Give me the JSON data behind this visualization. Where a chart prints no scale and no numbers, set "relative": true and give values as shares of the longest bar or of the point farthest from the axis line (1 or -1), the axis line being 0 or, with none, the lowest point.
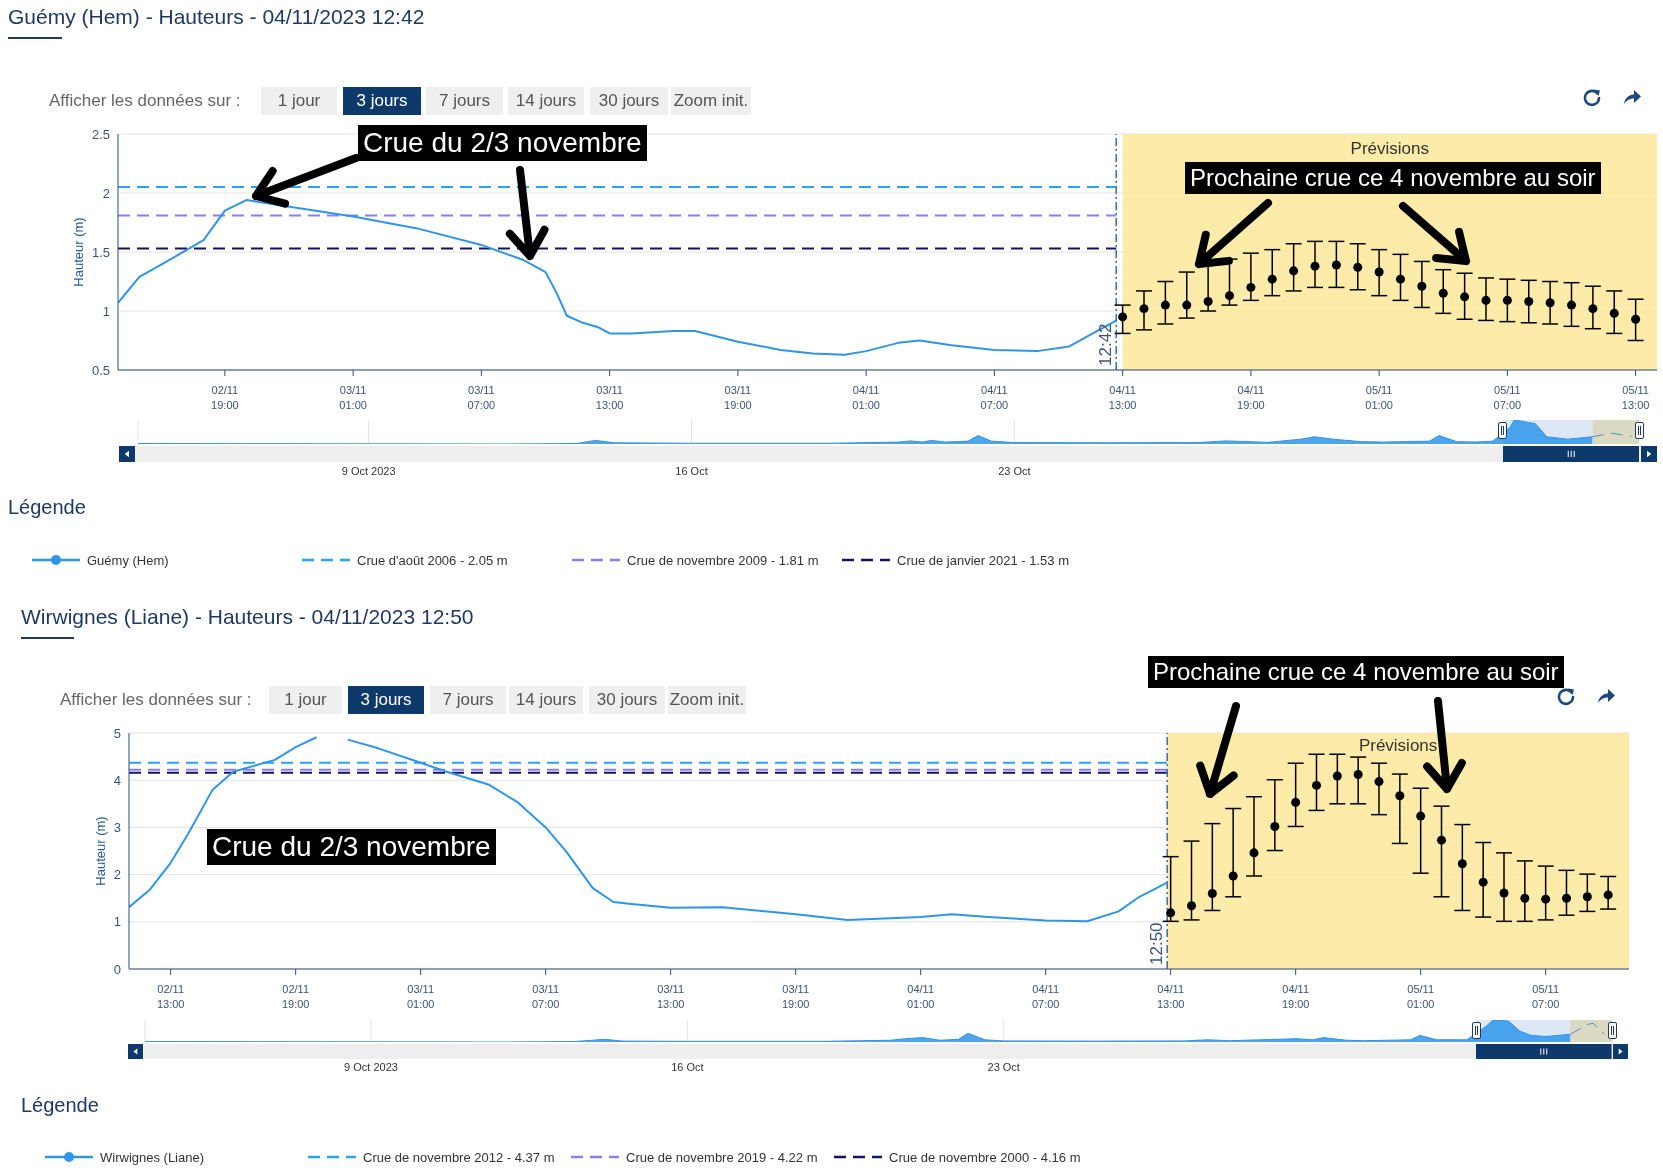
{
  "chart_data": [
    {
      "type": "line",
      "title": "Guémy (Hem) - Hauteurs - 04/11/2023 12:42",
      "ylabel": "Hauteur (m)",
      "legend_title": "Légende",
      "annotations": [
        "Afficher les données sur :",
        "1 jour",
        "3 jours",
        "7 jours",
        "14 jours",
        "30 jours",
        "Zoom init.",
        "Crue du 2/3 novembre",
        "Prochaine crue ce 4 novembre au soir"
      ],
      "series": [
        {
          "name": "Guémy (Hem)",
          "color": "#2f95ea",
          "x": [
            "2023-11-02T14:00",
            "2023-11-02T15:00",
            "2023-11-02T16:00",
            "2023-11-02T18:00",
            "2023-11-02T19:00",
            "2023-11-02T20:00",
            "2023-11-03T01:00",
            "2023-11-03T04:00",
            "2023-11-03T07:00",
            "2023-11-03T09:00",
            "2023-11-03T10:00",
            "2023-11-03T10:30",
            "2023-11-03T11:00",
            "2023-11-03T11:45",
            "2023-11-03T12:30",
            "2023-11-03T13:00",
            "2023-11-03T14:00",
            "2023-11-03T16:00",
            "2023-11-03T17:00",
            "2023-11-03T19:00",
            "2023-11-03T21:00",
            "2023-11-03T22:30",
            "2023-11-04T00:00",
            "2023-11-04T01:00",
            "2023-11-04T02:30",
            "2023-11-04T03:30",
            "2023-11-04T05:00",
            "2023-11-04T07:00",
            "2023-11-04T09:00",
            "2023-11-04T10:30",
            "2023-11-04T11:30",
            "2023-11-04T12:30",
            "2023-11-04T12:42"
          ],
          "values": [
            1.07,
            1.29,
            1.39,
            1.6,
            1.85,
            1.94,
            1.8,
            1.7,
            1.56,
            1.43,
            1.33,
            1.16,
            0.96,
            0.9,
            0.86,
            0.81,
            0.81,
            0.83,
            0.83,
            0.74,
            0.67,
            0.64,
            0.63,
            0.66,
            0.73,
            0.75,
            0.71,
            0.67,
            0.66,
            0.7,
            0.8,
            0.9,
            0.92
          ]
        },
        {
          "type": "scatter",
          "color": "#000000",
          "marker": "circle",
          "x": [
            "2023-11-04T13:00",
            "2023-11-04T14:00",
            "2023-11-04T15:00",
            "2023-11-04T16:00",
            "2023-11-04T17:00",
            "2023-11-04T18:00",
            "2023-11-04T19:00",
            "2023-11-04T20:00",
            "2023-11-04T21:00",
            "2023-11-04T22:00",
            "2023-11-04T23:00",
            "2023-11-05T00:00",
            "2023-11-05T01:00",
            "2023-11-05T02:00",
            "2023-11-05T03:00",
            "2023-11-05T04:00",
            "2023-11-05T05:00",
            "2023-11-05T06:00",
            "2023-11-05T07:00",
            "2023-11-05T08:00",
            "2023-11-05T09:00",
            "2023-11-05T10:00",
            "2023-11-05T11:00",
            "2023-11-05T12:00",
            "2023-11-05T13:00"
          ],
          "values": [
            0.95,
            1.02,
            1.05,
            1.05,
            1.08,
            1.13,
            1.2,
            1.27,
            1.34,
            1.38,
            1.39,
            1.37,
            1.33,
            1.27,
            1.21,
            1.15,
            1.12,
            1.09,
            1.09,
            1.08,
            1.07,
            1.05,
            1.02,
            0.98,
            0.93
          ],
          "errors": [
            [
              0.81,
              1.05
            ],
            [
              0.84,
              1.17
            ],
            [
              0.89,
              1.25
            ],
            [
              0.94,
              1.33
            ],
            [
              1.0,
              1.42
            ],
            [
              1.05,
              1.44
            ],
            [
              1.09,
              1.49
            ],
            [
              1.13,
              1.52
            ],
            [
              1.17,
              1.57
            ],
            [
              1.2,
              1.59
            ],
            [
              1.2,
              1.59
            ],
            [
              1.18,
              1.57
            ],
            [
              1.13,
              1.52
            ],
            [
              1.09,
              1.48
            ],
            [
              1.03,
              1.42
            ],
            [
              0.98,
              1.35
            ],
            [
              0.93,
              1.32
            ],
            [
              0.92,
              1.28
            ],
            [
              0.91,
              1.27
            ],
            [
              0.9,
              1.26
            ],
            [
              0.89,
              1.25
            ],
            [
              0.87,
              1.24
            ],
            [
              0.85,
              1.21
            ],
            [
              0.81,
              1.17
            ],
            [
              0.75,
              1.1
            ]
          ]
        }
      ],
      "xlim": [
        "2023-11-02T14:00",
        "2023-11-05T14:00"
      ],
      "xticks": [
        {
          "value": "2023-11-02T19:00",
          "label": "02/11\n19:00"
        },
        {
          "value": "2023-11-03T01:00",
          "label": "03/11\n01:00"
        },
        {
          "value": "2023-11-03T07:00",
          "label": "03/11\n07:00"
        },
        {
          "value": "2023-11-03T13:00",
          "label": "03/11\n13:00"
        },
        {
          "value": "2023-11-03T19:00",
          "label": "03/11\n19:00"
        },
        {
          "value": "2023-11-04T01:00",
          "label": "04/11\n01:00"
        },
        {
          "value": "2023-11-04T07:00",
          "label": "04/11\n07:00"
        },
        {
          "value": "2023-11-04T13:00",
          "label": "04/11\n13:00"
        },
        {
          "value": "2023-11-04T19:00",
          "label": "04/11\n19:00"
        },
        {
          "value": "2023-11-05T01:00",
          "label": "05/11\n01:00"
        },
        {
          "value": "2023-11-05T07:00",
          "label": "05/11\n07:00"
        },
        {
          "value": "2023-11-05T13:00",
          "label": "05/11\n13:00"
        }
      ],
      "ylim": [
        0.5,
        2.5
      ],
      "yticks": [
        0.5,
        1,
        1.5,
        2,
        2.5
      ],
      "grid": "y",
      "legend": "bottom",
      "ref_lines": [
        {
          "axis": "y",
          "value": 2.05,
          "label": "Crue d'août 2006 - 2.05 m",
          "color": "#29a3f2",
          "line_style": "dashed"
        },
        {
          "axis": "y",
          "value": 1.81,
          "label": "Crue de novembre 2009 - 1.81 m",
          "color": "#8a7ff0",
          "line_style": "dashed"
        },
        {
          "axis": "y",
          "value": 1.53,
          "label": "Crue de janvier 2021 - 1.53 m",
          "color": "#12126a",
          "line_style": "dashed"
        },
        {
          "axis": "x",
          "value": "2023-11-04T12:42",
          "label": "12:42",
          "color": "#3a6aa0",
          "line_style": "dashed"
        }
      ],
      "bands": [
        {
          "axis": "x",
          "from": "2023-11-04T13:00",
          "to": "2023-11-05T14:00",
          "label": "Prévisions",
          "color": "#fde99a"
        }
      ]
    },
    {
      "type": "area",
      "relative": true,
      "series": [
        {
          "color": "#2f95ea",
          "x": [
            "2023-10-04",
            "2023-10-08",
            "2023-10-12",
            "2023-10-13T12:00",
            "2023-10-13T22:00",
            "2023-10-14T08:00",
            "2023-10-16",
            "2023-10-19",
            "2023-10-20T12:00",
            "2023-10-20T18:00",
            "2023-10-21T00:00",
            "2023-10-21T05:00",
            "2023-10-21T12:00",
            "2023-10-22T00:00",
            "2023-10-22T05:00",
            "2023-10-22T12:00",
            "2023-10-23",
            "2023-10-25",
            "2023-10-27",
            "2023-10-27T14:00",
            "2023-10-28",
            "2023-10-28T12:00",
            "2023-10-29T05:00",
            "2023-10-29T12:00",
            "2023-10-29T22:00",
            "2023-10-30T12:00",
            "2023-10-31",
            "2023-11-01T00:00",
            "2023-11-01T05:00",
            "2023-11-01T14:00",
            "2023-11-02T00:00",
            "2023-11-02T09:00",
            "2023-11-02T18:00",
            "2023-11-02T20:00",
            "2023-11-03T07:00",
            "2023-11-03T13:00",
            "2023-11-04T00:00",
            "2023-11-04T12:42"
          ],
          "values": [
            0.02,
            0.01,
            0,
            0.02,
            0.15,
            0.05,
            0.03,
            0.03,
            0.08,
            0.13,
            0.08,
            0.15,
            0.08,
            0.12,
            0.35,
            0.12,
            0.06,
            0.05,
            0.06,
            0.13,
            0.1,
            0.07,
            0.2,
            0.3,
            0.2,
            0.1,
            0.08,
            0.12,
            0.35,
            0.1,
            0.08,
            0.12,
            0.7,
            1,
            0.85,
            0.3,
            0.2,
            0.3
          ]
        },
        {
          "type": "line",
          "color": "#5b8fc4",
          "line_style": "dashed",
          "x": [
            "2023-11-04T12:42",
            "2023-11-04T18:00",
            "2023-11-04T23:00",
            "2023-11-05T04:00",
            "2023-11-05T09:00"
          ],
          "values": [
            0.3,
            0.38,
            0.45,
            0.38,
            0.32
          ]
        }
      ],
      "xlim": [
        "2023-10-04",
        "2023-11-05T13:00"
      ],
      "xticks": [
        {
          "value": "2023-10-09",
          "label": "9 Oct 2023"
        },
        {
          "value": "2023-10-16",
          "label": "16 Oct"
        },
        {
          "value": "2023-10-23",
          "label": "23 Oct"
        }
      ],
      "grid": "x",
      "bands": [
        {
          "axis": "x",
          "from": "2023-11-02T14:00",
          "to": "2023-11-05T13:00",
          "color": "#c6d7f0"
        },
        {
          "axis": "x",
          "from": "2023-11-04T13:00",
          "to": "2023-11-05T13:00",
          "color": "#d8d2a2"
        }
      ]
    },
    {
      "type": "line",
      "title": "Wirwignes (Liane) - Hauteurs - 04/11/2023 12:50",
      "ylabel": "Hauteur (m)",
      "legend_title": "Légende",
      "annotations": [
        "Afficher les données sur :",
        "1 jour",
        "3 jours",
        "7 jours",
        "14 jours",
        "30 jours",
        "Zoom init.",
        "Crue du 2/3 novembre",
        "Prochaine crue ce 4 novembre au soir"
      ],
      "series": [
        {
          "name": "Wirwignes (Liane)",
          "color": "#2f95ea",
          "x": [
            "2023-11-02T11:00",
            "2023-11-02T12:00",
            "2023-11-02T13:00",
            "2023-11-02T13:50",
            "2023-11-02T15:00",
            "2023-11-02T16:00",
            "2023-11-02T18:00",
            "2023-11-02T19:00",
            "2023-11-02T20:00",
            "2023-11-02T20:45",
            "2023-11-02T21:30",
            "2023-11-02T23:00",
            "2023-11-03T01:00",
            "2023-11-03T02:15",
            "2023-11-03T04:15",
            "2023-11-03T05:40",
            "2023-11-03T07:00",
            "2023-11-03T08:00",
            "2023-11-03T09:15",
            "2023-11-03T10:15",
            "2023-11-03T11:00",
            "2023-11-03T13:00",
            "2023-11-03T15:30",
            "2023-11-03T19:00",
            "2023-11-03T21:30",
            "2023-11-04T01:00",
            "2023-11-04T02:30",
            "2023-11-04T04:15",
            "2023-11-04T07:00",
            "2023-11-04T09:00",
            "2023-11-04T10:30",
            "2023-11-04T11:30",
            "2023-11-04T12:50"
          ],
          "values": [
            1.31,
            1.68,
            2.25,
            2.86,
            3.79,
            4.18,
            4.43,
            4.7,
            4.91,
            null,
            4.86,
            4.67,
            4.37,
            4.18,
            3.91,
            3.53,
            3.0,
            2.48,
            1.72,
            1.42,
            1.38,
            1.3,
            1.31,
            1.16,
            1.04,
            1.1,
            1.16,
            1.1,
            1.03,
            1.01,
            1.22,
            1.53,
            1.83
          ]
        },
        {
          "type": "scatter",
          "color": "#000000",
          "marker": "circle",
          "x": [
            "2023-11-04T13:00",
            "2023-11-04T14:00",
            "2023-11-04T15:00",
            "2023-11-04T16:00",
            "2023-11-04T17:00",
            "2023-11-04T18:00",
            "2023-11-04T19:00",
            "2023-11-04T20:00",
            "2023-11-04T21:00",
            "2023-11-04T22:00",
            "2023-11-04T23:00",
            "2023-11-05T00:00",
            "2023-11-05T01:00",
            "2023-11-05T02:00",
            "2023-11-05T03:00",
            "2023-11-05T04:00",
            "2023-11-05T05:00",
            "2023-11-05T06:00",
            "2023-11-05T07:00",
            "2023-11-05T08:00",
            "2023-11-05T09:00",
            "2023-11-05T10:00"
          ],
          "values": [
            1.19,
            1.34,
            1.6,
            1.97,
            2.46,
            3.02,
            3.53,
            3.89,
            4.09,
            4.12,
            3.97,
            3.67,
            3.24,
            2.73,
            2.23,
            1.84,
            1.61,
            1.5,
            1.48,
            1.5,
            1.53,
            1.57
          ],
          "errors": [
            [
              1.01,
              2.38
            ],
            [
              1.04,
              2.71
            ],
            [
              1.24,
              3.08
            ],
            [
              1.53,
              3.4
            ],
            [
              1.97,
              3.65
            ],
            [
              2.51,
              4.01
            ],
            [
              3.02,
              4.36
            ],
            [
              3.36,
              4.55
            ],
            [
              3.5,
              4.55
            ],
            [
              3.5,
              4.49
            ],
            [
              3.27,
              4.36
            ],
            [
              2.66,
              4.13
            ],
            [
              2.03,
              3.83
            ],
            [
              1.53,
              3.45
            ],
            [
              1.24,
              3.06
            ],
            [
              1.1,
              2.68
            ],
            [
              1.01,
              2.46
            ],
            [
              1.01,
              2.29
            ],
            [
              1.04,
              2.18
            ],
            [
              1.14,
              2.09
            ],
            [
              1.22,
              2.01
            ],
            [
              1.27,
              1.96
            ]
          ]
        }
      ],
      "xlim": [
        "2023-11-02T11:00",
        "2023-11-05T11:00"
      ],
      "xticks": [
        {
          "value": "2023-11-02T13:00",
          "label": "02/11\n13:00"
        },
        {
          "value": "2023-11-02T19:00",
          "label": "02/11\n19:00"
        },
        {
          "value": "2023-11-03T01:00",
          "label": "03/11\n01:00"
        },
        {
          "value": "2023-11-03T07:00",
          "label": "03/11\n07:00"
        },
        {
          "value": "2023-11-03T13:00",
          "label": "03/11\n13:00"
        },
        {
          "value": "2023-11-03T19:00",
          "label": "03/11\n19:00"
        },
        {
          "value": "2023-11-04T01:00",
          "label": "04/11\n01:00"
        },
        {
          "value": "2023-11-04T07:00",
          "label": "04/11\n07:00"
        },
        {
          "value": "2023-11-04T13:00",
          "label": "04/11\n13:00"
        },
        {
          "value": "2023-11-04T19:00",
          "label": "04/11\n19:00"
        },
        {
          "value": "2023-11-05T01:00",
          "label": "05/11\n01:00"
        },
        {
          "value": "2023-11-05T07:00",
          "label": "05/11\n07:00"
        }
      ],
      "ylim": [
        0,
        5
      ],
      "yticks": [
        0,
        1,
        2,
        3,
        4,
        5
      ],
      "grid": "y",
      "legend": "bottom",
      "ref_lines": [
        {
          "axis": "y",
          "value": 4.37,
          "label": "Crue de novembre 2012 - 4.37 m",
          "color": "#29a3f2",
          "line_style": "dashed"
        },
        {
          "axis": "y",
          "value": 4.22,
          "label": "Crue de novembre 2019 - 4.22 m",
          "color": "#8a7ff0",
          "line_style": "dashed"
        },
        {
          "axis": "y",
          "value": 4.16,
          "label": "Crue de novembre 2000 - 4.16 m",
          "color": "#12126a",
          "line_style": "dashed"
        },
        {
          "axis": "x",
          "value": "2023-11-04T12:50",
          "label": "12:50",
          "color": "#3a6aa0",
          "line_style": "dashed"
        }
      ],
      "bands": [
        {
          "axis": "x",
          "from": "2023-11-04T12:50",
          "to": "2023-11-05T11:00",
          "label": "Prévisions",
          "color": "#fde99a"
        }
      ]
    },
    {
      "type": "area",
      "relative": true,
      "series": [
        {
          "color": "#2f95ea",
          "x": [
            "2023-10-04",
            "2023-10-08",
            "2023-10-12",
            "2023-10-13T12:00",
            "2023-10-14T04:00",
            "2023-10-14T14:00",
            "2023-10-16",
            "2023-10-19",
            "2023-10-20T12:00",
            "2023-10-20T20:00",
            "2023-10-21T05:00",
            "2023-10-21T14:00",
            "2023-10-22T00:00",
            "2023-10-22T05:00",
            "2023-10-22T14:00",
            "2023-10-23",
            "2023-10-25",
            "2023-10-27",
            "2023-10-27T12:00",
            "2023-10-28",
            "2023-10-29T12:00",
            "2023-10-29T20:00",
            "2023-10-30T02:00",
            "2023-10-30T14:00",
            "2023-10-31",
            "2023-11-01T00:00",
            "2023-11-01T05:00",
            "2023-11-01T14:00",
            "2023-11-02T06:00",
            "2023-11-02T16:00",
            "2023-11-02T20:00",
            "2023-11-03T04:00",
            "2023-11-03T10:00",
            "2023-11-03T16:00",
            "2023-11-04T00:00",
            "2023-11-04T12:50"
          ],
          "values": [
            0.02,
            0.01,
            0,
            0.02,
            0.12,
            0.04,
            0.03,
            0.03,
            0.08,
            0.15,
            0.2,
            0.08,
            0.12,
            0.4,
            0.1,
            0.05,
            0.04,
            0.05,
            0.1,
            0.06,
            0.15,
            0.1,
            0.2,
            0.08,
            0.06,
            0.1,
            0.3,
            0.1,
            0.1,
            0.7,
            1,
            0.95,
            0.5,
            0.3,
            0.25,
            0.35
          ]
        },
        {
          "type": "line",
          "color": "#5b8fc4",
          "line_style": "dashed",
          "x": [
            "2023-11-04T12:50",
            "2023-11-04T18:00",
            "2023-11-04T22:00",
            "2023-11-05T01:00",
            "2023-11-05T04:00",
            "2023-11-05T07:00"
          ],
          "values": [
            0.35,
            0.6,
            0.8,
            0.85,
            0.6,
            0.35
          ]
        }
      ],
      "xlim": [
        "2023-10-04",
        "2023-11-05T11:00"
      ],
      "xticks": [
        {
          "value": "2023-10-09",
          "label": "9 Oct 2023"
        },
        {
          "value": "2023-10-16",
          "label": "16 Oct"
        },
        {
          "value": "2023-10-23",
          "label": "23 Oct"
        }
      ],
      "grid": "x",
      "bands": [
        {
          "axis": "x",
          "from": "2023-11-02T11:00",
          "to": "2023-11-05T11:00",
          "color": "#c6d7f0"
        },
        {
          "axis": "x",
          "from": "2023-11-04T12:50",
          "to": "2023-11-05T11:00",
          "color": "#d8d2a2"
        }
      ]
    }
  ]
}
